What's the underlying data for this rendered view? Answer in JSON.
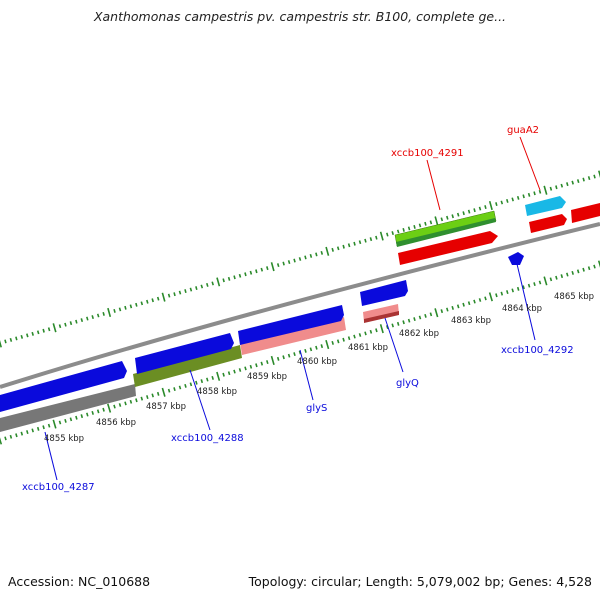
{
  "map": {
    "title": "Xanthomonas campestris pv. campestris str. B100, complete ge...",
    "accession": "Accession: NC_010688",
    "summary": "Topology: circular; Length: 5,079,002 bp; Genes: 4,528"
  },
  "ticks": [
    "4855 kbp",
    "4856 kbp",
    "4857 kbp",
    "4858 kbp",
    "4859 kbp",
    "4860 kbp",
    "4861 kbp",
    "4862 kbp",
    "4863 kbp",
    "4864 kbp",
    "4865 kbp"
  ],
  "gene_labels": {
    "xccb100_4287": "xccb100_4287",
    "xccb100_4288": "xccb100_4288",
    "glyS": "glyS",
    "glyQ": "glyQ",
    "xccb100_4291": "xccb100_4291",
    "guaA2": "guaA2",
    "xccb100_4292": "xccb100_4292"
  },
  "colors": {
    "reverse_gene": "#0a0adc",
    "forward_gene": "#e60000",
    "forward_gene_light": "#f08c8c",
    "olive_band": "#6b8e23",
    "green_band": "#7fd400",
    "cyan_gene": "#19b8e6",
    "grey_band": "#7f7f7f",
    "tick_green": "#2b8a2b",
    "backbone": "#8c8c8c"
  }
}
